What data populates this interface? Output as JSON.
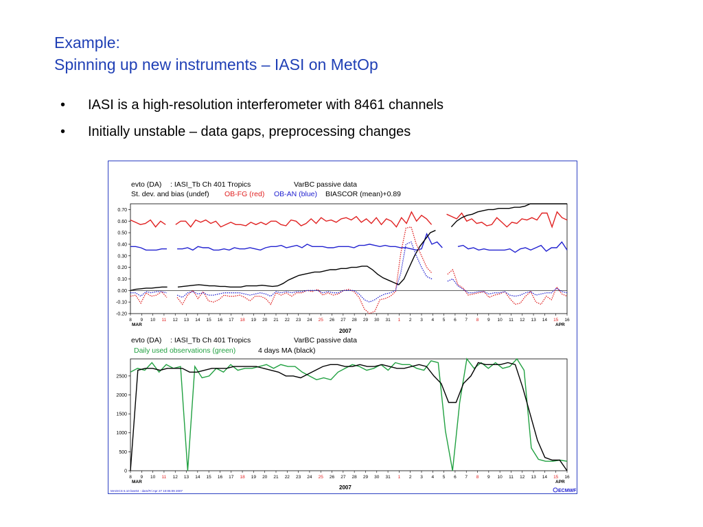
{
  "slide": {
    "title_line1": "Example:",
    "title_line2": "Spinning up new instruments – IASI on MetOp",
    "bullets": [
      "IASI is a high-resolution interferometer with 8461 channels",
      "Initially unstable – data gaps, preprocessing changes"
    ],
    "bullet_char": "•"
  },
  "figure": {
    "footer_left": "MAGICS 6.10 bee04 - dam/Fri Apr 27 10:05:09 2007",
    "logo": "ECMWF",
    "axis_dates": [
      "8",
      "9",
      "10",
      "11",
      "12",
      "13",
      "14",
      "15",
      "16",
      "17",
      "18",
      "19",
      "20",
      "21",
      "22",
      "23",
      "24",
      "25",
      "26",
      "27",
      "28",
      "29",
      "30",
      "31",
      "1",
      "2",
      "3",
      "4",
      "5",
      "6",
      "7",
      "8",
      "9",
      "10",
      "11",
      "12",
      "13",
      "14",
      "15",
      "16"
    ],
    "sunday_indices": [
      3,
      10,
      17,
      24,
      31,
      38
    ],
    "month_left": "MAR",
    "month_right": "APR",
    "year": "2007",
    "colors": {
      "red": "#e02020",
      "blue": "#2020d0",
      "black": "#000000",
      "green": "#20a040",
      "sunday": "#e02020",
      "frame": "#2b3fc2"
    }
  },
  "chart_data": [
    {
      "type": "line",
      "header": {
        "line1": {
          "expver": "evto (DA)",
          "param": ": IASI_Tb  Ch 401  Tropics",
          "note": "VarBC passive data"
        },
        "line2": {
          "prefix": "St. dev. and bias (undef)",
          "red": "OB-FG (red)",
          "blue": "OB-AN (blue)",
          "black": "BIASCOR (mean)+0.89"
        }
      },
      "ylim": [
        -0.2,
        0.75
      ],
      "yticks": [
        "-0.20",
        "-0.10",
        "0.00",
        "0.10",
        "0.20",
        "0.30",
        "0.40",
        "0.50",
        "0.60",
        "0.70"
      ],
      "xlabel": "2007",
      "x_range": [
        0,
        39
      ],
      "series": [
        {
          "color": "red",
          "dash": false,
          "values": [
            0.61,
            0.59,
            0.57,
            0.58,
            0.61,
            0.55,
            0.6,
            0.57,
            null,
            0.57,
            0.6,
            0.6,
            0.55,
            0.61,
            0.59,
            0.61,
            0.58,
            0.6,
            0.55,
            0.57,
            0.59,
            0.57,
            0.57,
            0.56,
            0.59,
            0.57,
            0.59,
            0.57,
            0.6,
            0.6,
            0.57,
            0.56,
            0.61,
            0.6,
            0.56,
            0.58,
            0.62,
            0.58,
            0.63,
            0.6,
            0.61,
            0.59,
            0.62,
            0.63,
            0.61,
            0.64,
            0.59,
            0.62,
            0.58,
            0.63,
            0.57,
            0.62,
            0.6,
            0.55,
            0.63,
            0.58,
            0.68,
            0.6,
            0.65,
            0.62,
            0.57,
            null,
            null,
            0.66,
            0.64,
            0.62,
            0.67,
            0.6,
            0.62,
            0.58,
            0.59,
            0.56,
            0.57,
            0.63,
            0.59,
            0.55,
            0.59,
            0.58,
            0.62,
            0.61,
            0.63,
            0.61,
            0.67,
            0.67,
            0.55,
            0.68,
            0.63,
            0.61
          ]
        },
        {
          "color": "blue",
          "dash": false,
          "values": [
            0.38,
            0.38,
            0.37,
            0.35,
            0.35,
            0.35,
            0.36,
            0.36,
            null,
            0.36,
            0.36,
            0.37,
            0.35,
            0.38,
            0.37,
            0.37,
            0.35,
            0.35,
            0.36,
            0.35,
            0.37,
            0.36,
            0.36,
            0.37,
            0.36,
            0.35,
            0.37,
            0.38,
            0.38,
            0.39,
            0.37,
            0.38,
            0.39,
            0.37,
            0.4,
            0.38,
            0.38,
            0.38,
            0.37,
            0.37,
            0.38,
            0.38,
            0.38,
            0.37,
            0.39,
            0.39,
            0.4,
            0.39,
            0.38,
            0.39,
            0.38,
            0.38,
            0.37,
            0.37,
            0.36,
            0.35,
            0.36,
            0.49,
            0.4,
            0.42,
            0.37,
            null,
            null,
            0.38,
            0.39,
            0.36,
            0.37,
            0.35,
            0.36,
            0.35,
            0.35,
            0.35,
            0.35,
            0.36,
            0.33,
            0.36,
            0.37,
            0.35,
            0.37,
            0.39,
            0.34,
            0.37,
            0.37,
            0.42,
            0.35
          ]
        },
        {
          "color": "black",
          "dash": false,
          "values": [
            0.0,
            0.01,
            0.015,
            0.02,
            0.02,
            0.025,
            0.03,
            0.03,
            null,
            0.03,
            0.035,
            0.04,
            0.045,
            0.05,
            0.045,
            0.04,
            0.04,
            0.035,
            0.035,
            0.03,
            0.03,
            0.03,
            0.04,
            0.04,
            0.04,
            0.045,
            0.04,
            0.035,
            0.04,
            0.06,
            0.09,
            0.11,
            0.13,
            0.14,
            0.15,
            0.16,
            0.16,
            0.17,
            0.18,
            0.18,
            0.19,
            0.19,
            0.2,
            0.2,
            0.21,
            0.21,
            0.18,
            0.14,
            0.11,
            0.09,
            0.07,
            0.05,
            0.1,
            0.2,
            0.3,
            0.38,
            0.44,
            0.5,
            0.52,
            null,
            null,
            0.55,
            0.6,
            0.63,
            0.65,
            0.66,
            0.68,
            0.69,
            0.7,
            0.7,
            0.71,
            0.71,
            0.71,
            0.72,
            0.72,
            0.73,
            0.75,
            0.76,
            0.76,
            0.76,
            0.76,
            0.75,
            0.75,
            0.75
          ]
        },
        {
          "color": "red",
          "dash": true,
          "values": [
            -0.05,
            -0.04,
            -0.11,
            -0.02,
            -0.05,
            -0.04,
            -0.01,
            -0.06,
            null,
            -0.06,
            -0.12,
            -0.04,
            0.0,
            -0.07,
            -0.01,
            -0.09,
            -0.1,
            -0.08,
            -0.04,
            -0.05,
            -0.05,
            -0.04,
            -0.06,
            -0.09,
            -0.05,
            -0.05,
            -0.07,
            -0.12,
            -0.02,
            -0.04,
            -0.02,
            -0.05,
            -0.02,
            -0.02,
            0.0,
            -0.01,
            0.01,
            -0.04,
            -0.02,
            -0.04,
            -0.03,
            0.0,
            0.01,
            -0.01,
            -0.06,
            -0.16,
            -0.22,
            -0.18,
            -0.08,
            -0.07,
            -0.05,
            -0.01,
            0.32,
            0.54,
            0.55,
            0.4,
            0.3,
            0.2,
            0.15,
            null,
            null,
            0.14,
            0.18,
            0.05,
            0.02,
            -0.04,
            -0.03,
            -0.02,
            -0.01,
            -0.06,
            -0.04,
            -0.03,
            -0.01,
            -0.07,
            -0.12,
            -0.11,
            -0.05,
            -0.01,
            -0.1,
            -0.12,
            -0.05,
            -0.08,
            0.03,
            -0.03,
            -0.05
          ]
        },
        {
          "color": "blue",
          "dash": true,
          "values": [
            -0.02,
            -0.02,
            -0.05,
            -0.01,
            -0.02,
            -0.01,
            -0.01,
            -0.02,
            null,
            -0.04,
            -0.06,
            -0.02,
            -0.01,
            -0.03,
            -0.02,
            -0.04,
            -0.04,
            -0.03,
            -0.02,
            -0.02,
            -0.02,
            -0.02,
            -0.03,
            -0.04,
            -0.03,
            -0.02,
            -0.03,
            -0.05,
            -0.01,
            -0.02,
            -0.01,
            -0.02,
            -0.01,
            -0.01,
            0.0,
            0.0,
            0.0,
            -0.02,
            -0.01,
            -0.02,
            -0.02,
            0.0,
            0.0,
            0.0,
            -0.03,
            -0.08,
            -0.1,
            -0.08,
            -0.05,
            -0.03,
            -0.02,
            0.0,
            0.15,
            0.4,
            0.42,
            0.3,
            0.2,
            0.12,
            0.1,
            null,
            null,
            0.08,
            0.1,
            0.04,
            0.01,
            -0.02,
            -0.02,
            -0.01,
            -0.01,
            -0.03,
            -0.02,
            -0.02,
            -0.01,
            -0.04,
            -0.05,
            -0.04,
            -0.02,
            -0.01,
            -0.04,
            -0.03,
            -0.02,
            -0.02,
            0.02,
            -0.01,
            -0.02
          ]
        }
      ]
    },
    {
      "type": "line",
      "header": {
        "line1": {
          "expver": "evto (DA)",
          "param": ": IASI_Tb  Ch 401  Tropics",
          "note": "VarBC passive data"
        },
        "line2": {
          "green": "Daily used observations (green)",
          "black": "4 days MA (black)"
        }
      },
      "ylim": [
        0,
        2950
      ],
      "yticks": [
        "0",
        "500",
        "1000",
        "1500",
        "2000",
        "2500"
      ],
      "xlabel": "2007",
      "x_range": [
        0,
        39
      ],
      "series": [
        {
          "color": "green",
          "dash": false,
          "values": [
            2600,
            2700,
            2650,
            2850,
            2600,
            2800,
            2700,
            2750,
            0,
            2750,
            2450,
            2500,
            2700,
            2600,
            2800,
            2650,
            2700,
            2700,
            2750,
            2800,
            2700,
            2800,
            2750,
            2750,
            2600,
            2500,
            2400,
            2450,
            2400,
            2600,
            2700,
            2800,
            2750,
            2650,
            2700,
            2800,
            2650,
            2850,
            2800,
            2800,
            2700,
            2650,
            2900,
            2850,
            1050,
            0,
            1800,
            2950,
            2700,
            2850,
            2700,
            2850,
            2700,
            2750,
            2950,
            2650,
            600,
            300,
            250,
            250,
            280,
            250
          ]
        },
        {
          "color": "black",
          "dash": false,
          "values": [
            0,
            2650,
            2700,
            2700,
            2650,
            2700,
            2700,
            2700,
            2600,
            2600,
            2650,
            2700,
            2700,
            2700,
            2750,
            2750,
            2750,
            2750,
            2700,
            2650,
            2600,
            2500,
            2500,
            2450,
            2550,
            2650,
            2750,
            2800,
            2800,
            2750,
            2750,
            2800,
            2750,
            2750,
            2800,
            2750,
            2700,
            2700,
            2750,
            2800,
            2750,
            2500,
            2300,
            1800,
            1800,
            2300,
            2500,
            2850,
            2800,
            2800,
            2800,
            2850,
            2800,
            2200,
            1500,
            800,
            350,
            280,
            280,
            0
          ]
        }
      ]
    }
  ]
}
